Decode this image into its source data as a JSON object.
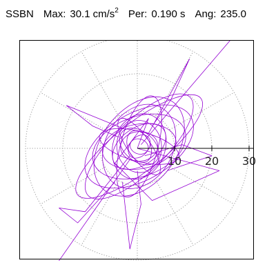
{
  "header": {
    "station": "SSBN",
    "max_label": "Max:",
    "max_value": "30.1",
    "max_unit_base": "cm/s",
    "max_unit_exp": "2",
    "per_label": "Per:",
    "per_value": "0.190 s",
    "ang_label": "Ang:",
    "ang_value": "235.0"
  },
  "colors": {
    "trace": "#9400d3",
    "end_marker": "#009e83",
    "grid": "#9a9a9a",
    "axis": "#000000",
    "frame": "#000000"
  },
  "chart_data": {
    "type": "polar-trace",
    "title": "",
    "radial_ticks": [
      "10",
      "20",
      "30"
    ],
    "radial_range": [
      0,
      30
    ],
    "spoke_angles_deg": [
      0,
      30,
      60,
      90,
      120,
      150,
      180,
      210,
      240,
      270,
      300,
      330
    ],
    "grid": "dotted",
    "peak": {
      "value": 30.1,
      "angle_deg": 235.0,
      "period_s": 0.19
    },
    "end_point": {
      "x": -25.1,
      "y": -36.0
    },
    "trace": {
      "center": [
        0.5,
        0.5
      ],
      "ellipses": [
        {
          "a": 21,
          "b": 6.5,
          "rot": 38
        },
        {
          "a": 19,
          "b": 7,
          "rot": 44
        },
        {
          "a": 16,
          "b": 9,
          "rot": 30
        },
        {
          "a": 15,
          "b": 10,
          "rot": 52
        },
        {
          "a": 13,
          "b": 8,
          "rot": 20
        },
        {
          "a": 12,
          "b": 9,
          "rot": 60
        },
        {
          "a": 10,
          "b": 6,
          "rot": 10
        },
        {
          "a": 9,
          "b": 7,
          "rot": 70
        },
        {
          "a": 8,
          "b": 5,
          "rot": 35
        },
        {
          "a": 7,
          "b": 6,
          "rot": 95
        },
        {
          "a": 6,
          "b": 4,
          "rot": 140
        },
        {
          "a": 5,
          "b": 4,
          "rot": 5
        },
        {
          "a": 4.5,
          "b": 3,
          "rot": 115
        },
        {
          "a": 3.5,
          "b": 2.5,
          "rot": 50
        },
        {
          "a": 2.5,
          "b": 2,
          "rot": 160
        },
        {
          "a": 11,
          "b": 4,
          "rot": 165
        },
        {
          "a": 14,
          "b": 5,
          "rot": 75
        },
        {
          "a": 9,
          "b": 3,
          "rot": 125
        }
      ],
      "strands": [
        [
          [
            1,
            1
          ],
          [
            30.5,
            35.5
          ]
        ],
        [
          [
            -2,
            -3
          ],
          [
            -25.1,
            -36.0
          ]
        ],
        [
          [
            0,
            0
          ],
          [
            22,
            -6
          ],
          [
            4,
            -14
          ],
          [
            -6,
            -4
          ],
          [
            3,
            8
          ],
          [
            0,
            0
          ]
        ],
        [
          [
            -3,
            5
          ],
          [
            -19,
            11.5
          ],
          [
            -12,
            6
          ],
          [
            -5,
            3
          ]
        ],
        [
          [
            2,
            -2
          ],
          [
            12,
            1
          ],
          [
            20,
            -2
          ],
          [
            8,
            -6
          ]
        ],
        [
          [
            -4,
            -9
          ],
          [
            -2,
            -27
          ],
          [
            1,
            -15
          ],
          [
            0,
            -6
          ]
        ],
        [
          [
            3,
            4
          ],
          [
            14,
            24
          ],
          [
            9,
            13
          ],
          [
            4,
            6
          ]
        ],
        [
          [
            -2,
            -2
          ],
          [
            -14,
            -17
          ],
          [
            -21,
            -16
          ],
          [
            -16,
            -20
          ],
          [
            -6,
            -9
          ]
        ]
      ]
    }
  }
}
